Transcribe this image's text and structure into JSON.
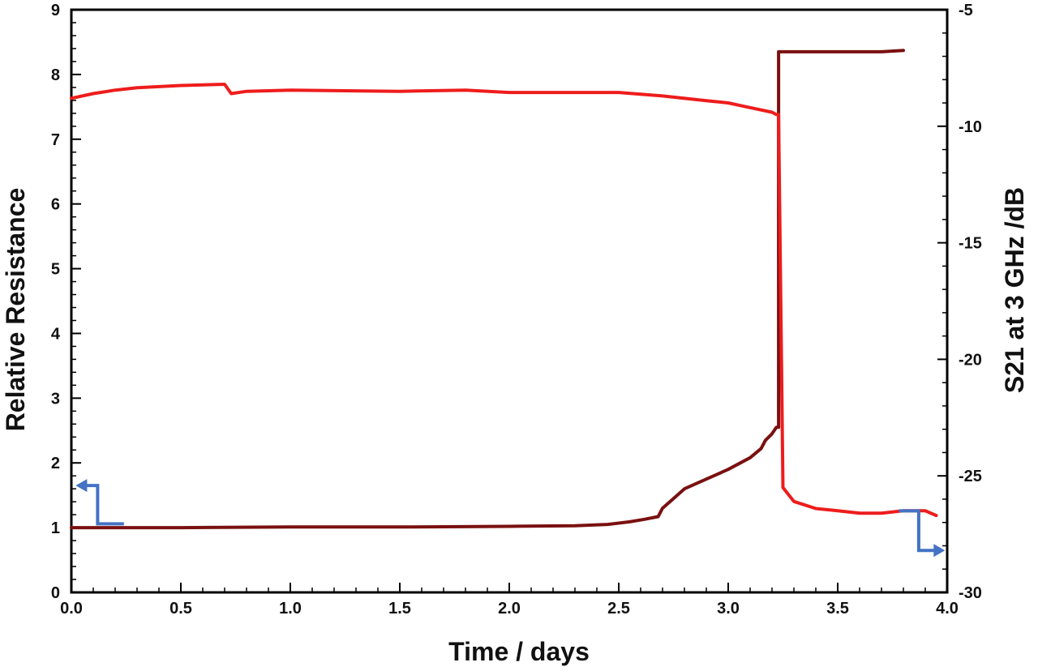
{
  "chart_data": {
    "type": "line",
    "title": "",
    "xlabel": "Time / days",
    "ylabel": "Relative Resistance",
    "y2label": "S21 at 3 GHz /dB",
    "xlim": [
      0,
      4
    ],
    "ylim": [
      0,
      9
    ],
    "y2lim": [
      -30,
      -5
    ],
    "grid": false,
    "legend": "none",
    "x_ticks": [
      "0.0",
      "0.5",
      "1.0",
      "1.5",
      "2.0",
      "2.5",
      "3.0",
      "3.5",
      "4.0"
    ],
    "y_ticks": [
      "0",
      "1",
      "2",
      "3",
      "4",
      "5",
      "6",
      "7",
      "8",
      "9"
    ],
    "y2_ticks": [
      "-30",
      "-25",
      "-20",
      "-15",
      "-10",
      "-5"
    ],
    "series": [
      {
        "axis": "left",
        "color": "#7a1010",
        "x": [
          0,
          0.5,
          1.0,
          1.5,
          2.0,
          2.3,
          2.45,
          2.55,
          2.62,
          2.68,
          2.7,
          2.75,
          2.8,
          2.9,
          3.0,
          3.1,
          3.15,
          3.17,
          3.2,
          3.22,
          3.23,
          3.23,
          3.5,
          3.7,
          3.8
        ],
        "y": [
          1.0,
          1.0,
          1.01,
          1.01,
          1.02,
          1.03,
          1.05,
          1.09,
          1.13,
          1.17,
          1.3,
          1.45,
          1.6,
          1.75,
          1.9,
          2.08,
          2.22,
          2.35,
          2.45,
          2.55,
          2.55,
          8.35,
          8.35,
          8.35,
          8.37
        ]
      },
      {
        "axis": "right",
        "color": "#ee1c1c",
        "x": [
          0,
          0.1,
          0.2,
          0.3,
          0.5,
          0.7,
          0.73,
          0.8,
          1.0,
          1.5,
          1.8,
          2.0,
          2.5,
          2.7,
          2.9,
          3.0,
          3.1,
          3.2,
          3.22,
          3.23,
          3.25,
          3.3,
          3.4,
          3.5,
          3.6,
          3.7,
          3.8,
          3.9,
          3.95
        ],
        "y": [
          -8.8,
          -8.6,
          -8.45,
          -8.35,
          -8.25,
          -8.2,
          -8.6,
          -8.5,
          -8.45,
          -8.5,
          -8.45,
          -8.55,
          -8.55,
          -8.7,
          -8.9,
          -9.0,
          -9.2,
          -9.4,
          -9.5,
          -9.5,
          -25.5,
          -26.1,
          -26.4,
          -26.5,
          -26.6,
          -26.6,
          -26.5,
          -26.5,
          -26.7
        ]
      }
    ],
    "annotations": [
      {
        "type": "arrow",
        "points_to": "left-axis",
        "series": "Relative Resistance",
        "color": "#4472c4"
      },
      {
        "type": "arrow",
        "points_to": "right-axis",
        "series": "S21 at 3 GHz /dB",
        "color": "#4472c4"
      }
    ]
  }
}
